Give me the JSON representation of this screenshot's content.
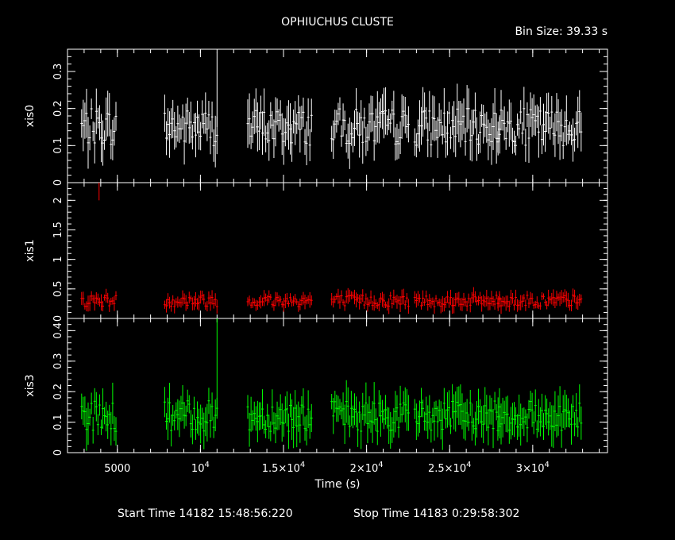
{
  "title": "OPHIUCHUS CLUSTE",
  "bin_size": "Bin Size: 39.33 s",
  "xlabel": "Time (s)",
  "start_time": "Start Time 14182 15:48:56:220",
  "stop_time": "Stop Time 14183  0:29:58:302",
  "colors": {
    "background": "#000000",
    "axes": "#ffffff",
    "xis0": "#ffffff",
    "xis1": "#ff0000",
    "xis3": "#00ff00"
  },
  "chart_data": [
    {
      "type": "line",
      "name": "xis0",
      "ylabel": "xis0",
      "color": "#ffffff",
      "xlim": [
        2000,
        34500
      ],
      "ylim": [
        0,
        0.36
      ],
      "yticks": [
        0,
        0.1,
        0.2,
        0.3
      ],
      "ytick_labels": [
        "0",
        "0.1",
        "0.2",
        "0.3"
      ],
      "segments": [
        [
          2850,
          4950
        ],
        [
          7850,
          11050
        ],
        [
          12850,
          16700
        ],
        [
          17900,
          22600
        ],
        [
          22900,
          28050
        ],
        [
          27900,
          33000
        ]
      ],
      "mean": 0.15,
      "spread": 0.05,
      "max_peak": 0.35
    },
    {
      "type": "line",
      "name": "xis1",
      "ylabel": "xis1",
      "color": "#ff0000",
      "xlim": [
        2000,
        34500
      ],
      "ylim": [
        0,
        2.3
      ],
      "yticks": [
        0,
        0.5,
        1,
        1.5,
        2
      ],
      "ytick_labels": [
        "0",
        "0.5",
        "1",
        "1.5",
        "2"
      ],
      "segments": [
        [
          2850,
          4950
        ],
        [
          7850,
          11050
        ],
        [
          12850,
          16700
        ],
        [
          17900,
          22600
        ],
        [
          22900,
          28050
        ],
        [
          27900,
          33000
        ]
      ],
      "mean": 0.3,
      "spread": 0.1,
      "outlier": {
        "x": 3900,
        "y": 2.0
      }
    },
    {
      "type": "line",
      "name": "xis3",
      "ylabel": "xis3",
      "color": "#00ff00",
      "xlim": [
        2000,
        34500
      ],
      "ylim": [
        0,
        0.44
      ],
      "yticks": [
        0,
        0.1,
        0.2,
        0.3,
        0.4
      ],
      "ytick_labels": [
        "0",
        "0.1",
        "0.2",
        "0.3",
        "0.4"
      ],
      "segments": [
        [
          2850,
          4950
        ],
        [
          7850,
          11050
        ],
        [
          12850,
          16700
        ],
        [
          17900,
          22600
        ],
        [
          22900,
          28050
        ],
        [
          27900,
          33000
        ]
      ],
      "mean": 0.12,
      "spread": 0.05,
      "max_peak": 0.44
    }
  ],
  "xaxis": {
    "xlim": [
      2000,
      34500
    ],
    "ticks": [
      5000,
      10000,
      15000,
      20000,
      25000,
      30000
    ],
    "tick_labels": [
      {
        "mant": "5000",
        "exp": ""
      },
      {
        "mant": "10",
        "exp": "4"
      },
      {
        "mant": "1.5×10",
        "exp": "4"
      },
      {
        "mant": "2×10",
        "exp": "4"
      },
      {
        "mant": "2.5×10",
        "exp": "4"
      },
      {
        "mant": "3×10",
        "exp": "4"
      }
    ]
  }
}
